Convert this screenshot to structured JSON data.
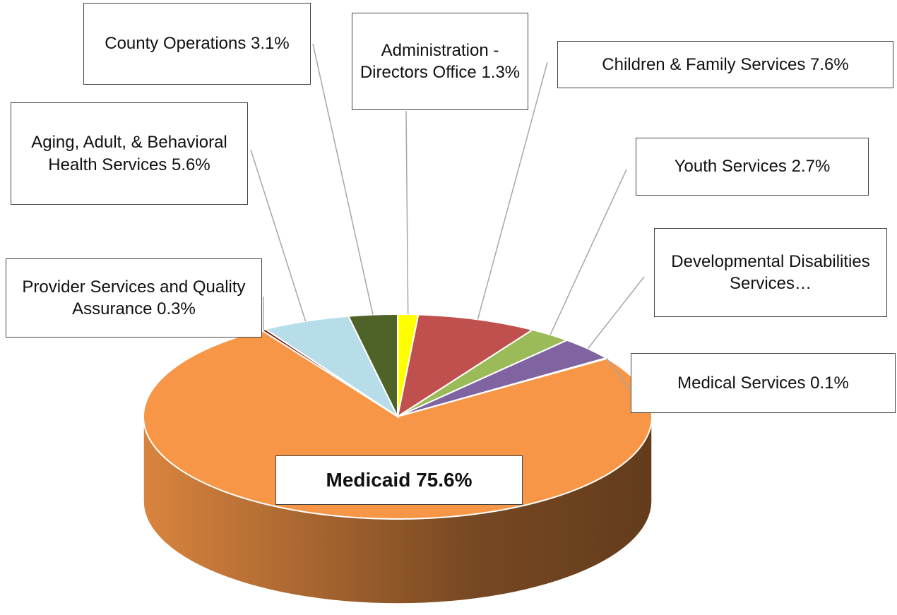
{
  "chart_data": {
    "type": "pie",
    "three_d": true,
    "value_labels": [
      "Administration - Directors Office 1.3%",
      "Children & Family Services 7.6%",
      "Youth Services 2.7%",
      "Developmental Disabilities Services…",
      "Medical Services 0.1%",
      "Medicaid 75.6%",
      "Provider Services and Quality Assurance 0.3%",
      "Aging, Adult, & Behavioral Health Services 5.6%",
      "County Operations 3.1%"
    ],
    "values": [
      1.3,
      7.6,
      2.7,
      3.7,
      0.1,
      75.6,
      0.3,
      5.6,
      3.1
    ],
    "colors": [
      "#ffff00",
      "#c0504d",
      "#9bbb59",
      "#8064a2",
      "#4bacc6",
      "#f79646",
      "#7f2020",
      "#b7dde8",
      "#4f6228"
    ]
  }
}
